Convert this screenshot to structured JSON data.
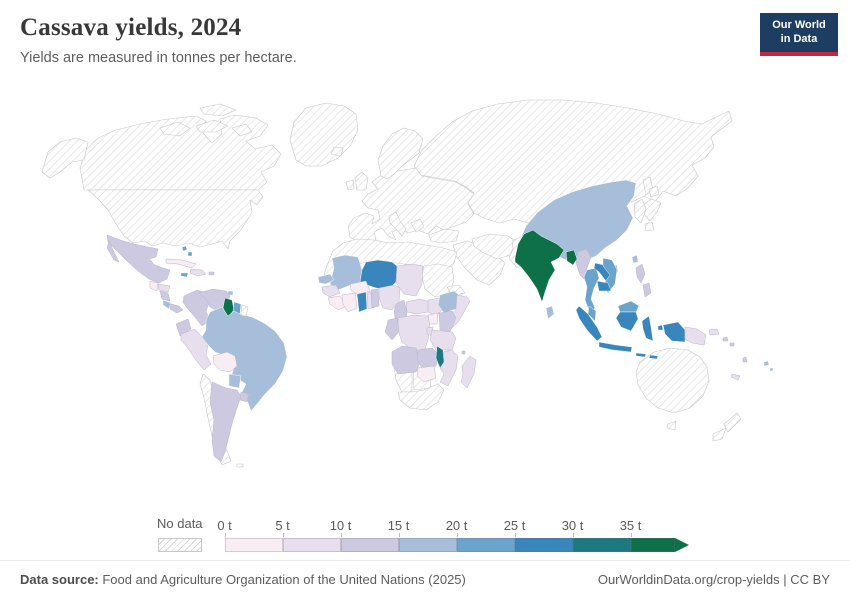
{
  "header": {
    "title": "Cassava yields, 2024",
    "subtitle": "Yields are measured in tonnes per hectare.",
    "logo_line1": "Our World",
    "logo_line2": "in Data",
    "logo_bg": "#1d3d63",
    "logo_stripe": "#cb2440"
  },
  "legend": {
    "no_data_label": "No data",
    "tick_labels": [
      "0 t",
      "5 t",
      "10 t",
      "15 t",
      "20 t",
      "25 t",
      "30 t",
      "35 t"
    ],
    "bin_ranges": [
      "0-5 t",
      "5-10 t",
      "10-15 t",
      "15-20 t",
      "20-25 t",
      "25-30 t",
      "30-35 t",
      "35+ t"
    ],
    "bin_colors": [
      "#f9edf4",
      "#e7dfee",
      "#cdc9e1",
      "#a7bedb",
      "#6aa3cb",
      "#3886bb",
      "#1a7a80",
      "#0d7049"
    ],
    "hatch_line_color": "#dcdcdc",
    "nodata_border_color": "#c9c9c9"
  },
  "footer": {
    "source_label": "Data source:",
    "source_text": " Food and Agriculture Organization of the United Nations (2025)",
    "right_text": "OurWorldinData.org/crop-yields | CC BY"
  },
  "chart_data": {
    "type": "heatmap",
    "subtype": "world-choropleth",
    "title": "Cassava yields, 2024",
    "subtitle": "Yields are measured in tonnes per hectare.",
    "unit": "tonnes per hectare",
    "year": 2024,
    "legend_bins": [
      "0-5 t",
      "5-10 t",
      "10-15 t",
      "15-20 t",
      "20-25 t",
      "25-30 t",
      "30-35 t",
      "35+ t"
    ],
    "countries": [
      {
        "id": "india",
        "name": "India",
        "yield": "35+ t"
      },
      {
        "id": "guyana",
        "name": "Guyana",
        "yield": "35+ t"
      },
      {
        "id": "bangladesh",
        "name": "Bangladesh",
        "yield": "35+ t"
      },
      {
        "id": "malawi",
        "name": "Malawi",
        "yield": "30-35 t"
      },
      {
        "id": "indonesia",
        "name": "Indonesia",
        "yield": "25-30 t"
      },
      {
        "id": "laos",
        "name": "Laos",
        "yield": "25-30 t"
      },
      {
        "id": "cambodia",
        "name": "Cambodia",
        "yield": "25-30 t"
      },
      {
        "id": "niger",
        "name": "Niger",
        "yield": "25-30 t"
      },
      {
        "id": "ghana",
        "name": "Ghana",
        "yield": "25-30 t"
      },
      {
        "id": "thailand",
        "name": "Thailand",
        "yield": "20-25 t"
      },
      {
        "id": "vietnam",
        "name": "Vietnam",
        "yield": "20-25 t"
      },
      {
        "id": "suriname",
        "name": "Suriname",
        "yield": "20-25 t"
      },
      {
        "id": "jamaica",
        "name": "Jamaica",
        "yield": "20-25 t"
      },
      {
        "id": "malaysia",
        "name": "Malaysia",
        "yield": "20-25 t"
      },
      {
        "id": "bahamas",
        "name": "Bahamas",
        "yield": "20-25 t"
      },
      {
        "id": "brazil",
        "name": "Brazil",
        "yield": "15-20 t"
      },
      {
        "id": "china",
        "name": "China",
        "yield": "15-20 t"
      },
      {
        "id": "mali",
        "name": "Mali",
        "yield": "15-20 t"
      },
      {
        "id": "senegal",
        "name": "Senegal",
        "yield": "15-20 t"
      },
      {
        "id": "ethiopia",
        "name": "Ethiopia",
        "yield": "15-20 t"
      },
      {
        "id": "sri-lanka",
        "name": "Sri Lanka",
        "yield": "15-20 t"
      },
      {
        "id": "paraguay",
        "name": "Paraguay",
        "yield": "15-20 t"
      },
      {
        "id": "fiji",
        "name": "Fiji",
        "yield": "15-20 t"
      },
      {
        "id": "costa-rica",
        "name": "Costa Rica",
        "yield": "15-20 t"
      },
      {
        "id": "taiwan",
        "name": "Taiwan",
        "yield": "15-20 t"
      },
      {
        "id": "trinidad-and-tobago",
        "name": "Trinidad and Tobago",
        "yield": "15-20 t"
      },
      {
        "id": "mexico",
        "name": "Mexico",
        "yield": "10-15 t"
      },
      {
        "id": "colombia",
        "name": "Colombia",
        "yield": "10-15 t"
      },
      {
        "id": "venezuela",
        "name": "Venezuela",
        "yield": "10-15 t"
      },
      {
        "id": "ecuador",
        "name": "Ecuador",
        "yield": "10-15 t"
      },
      {
        "id": "argentina",
        "name": "Argentina",
        "yield": "10-15 t"
      },
      {
        "id": "uruguay",
        "name": "Uruguay",
        "yield": "10-15 t"
      },
      {
        "id": "benin",
        "name": "Benin",
        "yield": "10-15 t"
      },
      {
        "id": "cameroon",
        "name": "Cameroon",
        "yield": "10-15 t"
      },
      {
        "id": "congo-gabon",
        "name": "Congo & Gabon",
        "yield": "10-15 t"
      },
      {
        "id": "kenya",
        "name": "Kenya",
        "yield": "10-15 t"
      },
      {
        "id": "angola",
        "name": "Angola",
        "yield": "10-15 t"
      },
      {
        "id": "zambia",
        "name": "Zambia",
        "yield": "10-15 t"
      },
      {
        "id": "myanmar",
        "name": "Myanmar",
        "yield": "10-15 t"
      },
      {
        "id": "philippines",
        "name": "Philippines",
        "yield": "10-15 t"
      },
      {
        "id": "nicaragua",
        "name": "Nicaragua",
        "yield": "10-15 t"
      },
      {
        "id": "panama",
        "name": "Panama",
        "yield": "10-15 t"
      },
      {
        "id": "solomon-islands",
        "name": "Solomon Islands",
        "yield": "10-15 t"
      },
      {
        "id": "puerto-rico",
        "name": "Puerto Rico",
        "yield": "10-15 t"
      },
      {
        "id": "vanuatu",
        "name": "Vanuatu",
        "yield": "10-15 t"
      },
      {
        "id": "comoros",
        "name": "Comoros",
        "yield": "10-15 t"
      },
      {
        "id": "peru",
        "name": "Peru",
        "yield": "5-10 t"
      },
      {
        "id": "chad",
        "name": "Chad",
        "yield": "5-10 t"
      },
      {
        "id": "nigeria",
        "name": "Nigeria",
        "yield": "5-10 t"
      },
      {
        "id": "central-african-republic",
        "name": "Central African Republic",
        "yield": "5-10 t"
      },
      {
        "id": "dr-congo",
        "name": "Democratic Republic of Congo",
        "yield": "5-10 t"
      },
      {
        "id": "somalia",
        "name": "Somalia",
        "yield": "5-10 t"
      },
      {
        "id": "tanzania",
        "name": "Tanzania",
        "yield": "5-10 t"
      },
      {
        "id": "mozambique",
        "name": "Mozambique",
        "yield": "5-10 t"
      },
      {
        "id": "madagascar",
        "name": "Madagascar",
        "yield": "5-10 t"
      },
      {
        "id": "guinea",
        "name": "Guinea",
        "yield": "5-10 t"
      },
      {
        "id": "papua-new-guinea",
        "name": "Papua New Guinea",
        "yield": "5-10 t"
      },
      {
        "id": "south-sudan",
        "name": "South Sudan",
        "yield": "5-10 t"
      },
      {
        "id": "togo",
        "name": "Togo",
        "yield": "5-10 t"
      },
      {
        "id": "honduras",
        "name": "Honduras",
        "yield": "5-10 t"
      },
      {
        "id": "hispaniola",
        "name": "Haiti & Dominican Republic",
        "yield": "5-10 t"
      },
      {
        "id": "rwanda-burundi",
        "name": "Rwanda & Burundi",
        "yield": "5-10 t"
      },
      {
        "id": "new-caledonia",
        "name": "New Caledonia",
        "yield": "5-10 t"
      },
      {
        "id": "bolivia",
        "name": "Bolivia",
        "yield": "0-5 t"
      },
      {
        "id": "cuba",
        "name": "Cuba",
        "yield": "0-5 t"
      },
      {
        "id": "guatemala",
        "name": "Guatemala",
        "yield": "0-5 t"
      },
      {
        "id": "burkina-faso",
        "name": "Burkina Faso",
        "yield": "0-5 t"
      },
      {
        "id": "cote-divoire",
        "name": "Côte d'Ivoire",
        "yield": "0-5 t"
      },
      {
        "id": "sierra-leone-liberia",
        "name": "Sierra Leone & Liberia",
        "yield": "0-5 t"
      },
      {
        "id": "uganda",
        "name": "Uganda",
        "yield": "0-5 t"
      },
      {
        "id": "zimbabwe",
        "name": "Zimbabwe",
        "yield": "0-5 t"
      },
      {
        "id": "canada",
        "name": "Canada",
        "yield": "No data"
      },
      {
        "id": "united-states",
        "name": "United States",
        "yield": "No data"
      },
      {
        "id": "greenland",
        "name": "Greenland",
        "yield": "No data"
      },
      {
        "id": "europe",
        "name": "Europe",
        "yield": "No data"
      },
      {
        "id": "scandinavia",
        "name": "Scandinavia",
        "yield": "No data"
      },
      {
        "id": "uk",
        "name": "United Kingdom",
        "yield": "No data"
      },
      {
        "id": "ireland",
        "name": "Ireland",
        "yield": "No data"
      },
      {
        "id": "iceland",
        "name": "Iceland",
        "yield": "No data"
      },
      {
        "id": "italy",
        "name": "Italy",
        "yield": "No data"
      },
      {
        "id": "greece",
        "name": "Greece",
        "yield": "No data"
      },
      {
        "id": "russia-central-asia",
        "name": "Russia & Central Asia",
        "yield": "No data"
      },
      {
        "id": "turkey",
        "name": "Turkey",
        "yield": "No data"
      },
      {
        "id": "arabia",
        "name": "Arabian Peninsula",
        "yield": "No data"
      },
      {
        "id": "iran",
        "name": "Iran",
        "yield": "No data"
      },
      {
        "id": "afghanistan-pakistan",
        "name": "Afghanistan & Pakistan",
        "yield": "No data"
      },
      {
        "id": "nepal",
        "name": "Nepal",
        "yield": "No data"
      },
      {
        "id": "north-africa",
        "name": "North Africa",
        "yield": "No data"
      },
      {
        "id": "sudan",
        "name": "Sudan",
        "yield": "No data"
      },
      {
        "id": "eritrea-djibouti",
        "name": "Eritrea & Djibouti",
        "yield": "No data"
      },
      {
        "id": "namibia",
        "name": "Namibia",
        "yield": "No data"
      },
      {
        "id": "botswana",
        "name": "Botswana",
        "yield": "No data"
      },
      {
        "id": "south-africa",
        "name": "South Africa",
        "yield": "No data"
      },
      {
        "id": "chile",
        "name": "Chile",
        "yield": "No data"
      },
      {
        "id": "french-guiana",
        "name": "French Guiana",
        "yield": "No data"
      },
      {
        "id": "belize",
        "name": "Belize",
        "yield": "No data"
      },
      {
        "id": "australia",
        "name": "Australia",
        "yield": "No data"
      },
      {
        "id": "new-zealand",
        "name": "New Zealand",
        "yield": "No data"
      },
      {
        "id": "japan",
        "name": "Japan",
        "yield": "No data"
      },
      {
        "id": "korea",
        "name": "Korea",
        "yield": "No data"
      },
      {
        "id": "falkland-islands",
        "name": "Falkland Islands",
        "yield": "No data"
      }
    ]
  }
}
